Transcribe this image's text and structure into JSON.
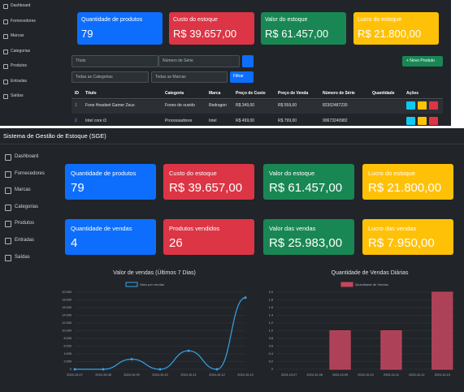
{
  "top_screen": {
    "sidebar": [
      "Dashboard",
      "Fornecedores",
      "Marcas",
      "Categorias",
      "Produtos",
      "Entradas",
      "Saídas"
    ],
    "cards": [
      {
        "label": "Quantidade de produtos",
        "value": "79"
      },
      {
        "label": "Custo do estoque",
        "value": "R$ 39.657,00"
      },
      {
        "label": "Valor do estoque",
        "value": "R$ 61.457,00"
      },
      {
        "label": "Lucro do estoque",
        "value": "R$ 21.800,00"
      }
    ],
    "filters": {
      "title_placeholder": "Título",
      "serial_placeholder": "Número de Série",
      "category_select": "Todas as Categorias",
      "brand_select": "Todas as Marcas",
      "filter_button": "Filtrar",
      "new_button": "+ Novo Produto"
    },
    "table": {
      "headers": [
        "ID",
        "Título",
        "Categoria",
        "Marca",
        "Preço de Custo",
        "Preço de Venda",
        "Número de Série",
        "Quantidade",
        "Ações"
      ],
      "rows": [
        [
          "1",
          "Fone Headset Gamer Zeus",
          "Fones de ouvido",
          "Redragon",
          "R$ 349,00",
          "R$ 559,00",
          "82302487230"
        ],
        [
          "2",
          "Intel core i3",
          "Processadores",
          "Intel",
          "R$ 499,00",
          "R$ 799,00",
          "90673240982"
        ]
      ]
    }
  },
  "main_screen": {
    "title": "Sistema de Gestão de Estoque (SGE)",
    "sidebar": [
      "Dashboard",
      "Fornecedores",
      "Marcas",
      "Categorias",
      "Produtos",
      "Entradas",
      "Saídas"
    ],
    "cards": [
      {
        "label": "Quantidade de produtos",
        "value": "79"
      },
      {
        "label": "Custo do estoque",
        "value": "R$ 39.657,00"
      },
      {
        "label": "Valor do estoque",
        "value": "R$ 61.457,00"
      },
      {
        "label": "Lucro do estoque",
        "value": "R$ 21.800,00"
      },
      {
        "label": "Quantidade de vendas",
        "value": "4"
      },
      {
        "label": "Produtos vendidos",
        "value": "26"
      },
      {
        "label": "Valor das vendas",
        "value": "R$ 25.983,00"
      },
      {
        "label": "Lucro das vendas",
        "value": "R$ 7.950,00"
      }
    ]
  },
  "chart_data": [
    {
      "type": "line",
      "title": "Valor de vendas (Últimos 7 Dias)",
      "categories": [
        "2024-10-07",
        "2024-10-08",
        "2024-10-09",
        "2024-10-10",
        "2024-10-11",
        "2024-10-12",
        "2024-10-13"
      ],
      "series": [
        {
          "name": "Valor por vendas",
          "color": "#36a2eb",
          "values": [
            0,
            0,
            2600,
            0,
            4800,
            0,
            18583
          ]
        }
      ],
      "ylim": [
        0,
        20000
      ],
      "yticks": [
        0,
        {
          "value": 2000,
          "label": "2.000"
        },
        {
          "value": 4000,
          "label": "4.000"
        },
        {
          "value": 6000,
          "label": "6.000"
        },
        {
          "value": 8000,
          "label": "8.000"
        },
        {
          "value": 10000,
          "label": "10.000"
        },
        {
          "value": 12000,
          "label": "12.000"
        },
        {
          "value": 14000,
          "label": "14.000"
        },
        {
          "value": 16000,
          "label": "16.000"
        },
        {
          "value": 18000,
          "label": "18.000"
        },
        {
          "value": 20000,
          "label": "20.000"
        }
      ],
      "grid": true
    },
    {
      "type": "bar",
      "title": "Quantidade de Vendas Diárias",
      "categories": [
        "2024-10-07",
        "2024-10-08",
        "2024-10-09",
        "2024-10-10",
        "2024-10-11",
        "2024-10-12",
        "2024-10-13"
      ],
      "series": [
        {
          "name": "Quantidade de Vendas",
          "color": "#c4475f",
          "values": [
            0,
            0,
            1,
            0,
            1,
            0,
            2
          ]
        }
      ],
      "ylim": [
        0,
        2
      ],
      "yticks": [
        0,
        0.2,
        0.4,
        0.6,
        0.8,
        {
          "value": 1,
          "label": "1.0"
        },
        1.2,
        1.4,
        1.6,
        1.8,
        {
          "value": 2,
          "label": "2.0"
        }
      ],
      "grid": true
    }
  ]
}
